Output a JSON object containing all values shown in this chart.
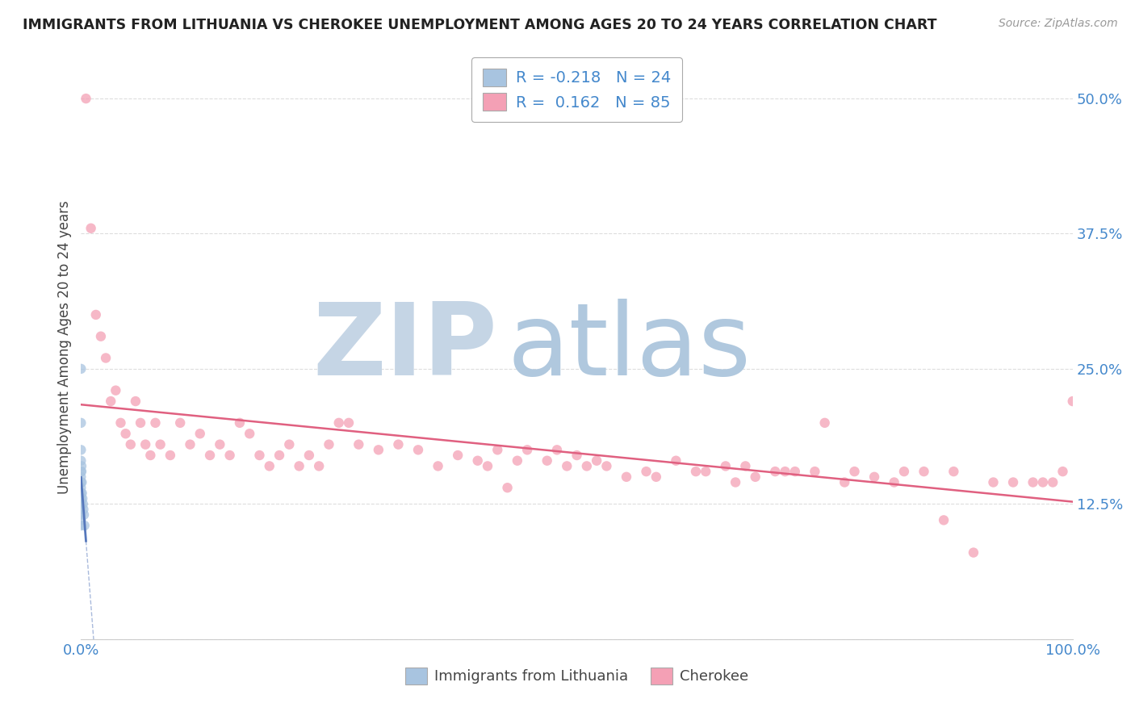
{
  "title": "IMMIGRANTS FROM LITHUANIA VS CHEROKEE UNEMPLOYMENT AMONG AGES 20 TO 24 YEARS CORRELATION CHART",
  "source": "Source: ZipAtlas.com",
  "ylabel": "Unemployment Among Ages 20 to 24 years",
  "legend_label_1": "Immigrants from Lithuania",
  "legend_label_2": "Cherokee",
  "R1": -0.218,
  "N1": 24,
  "R2": 0.162,
  "N2": 85,
  "color1": "#a8c4e0",
  "color2": "#f4a0b5",
  "line_color1": "#5577bb",
  "line_color2": "#e06080",
  "watermark_zip": "ZIP",
  "watermark_atlas": "atlas",
  "watermark_color_zip": "#c8d8e8",
  "watermark_color_atlas": "#b8cce0",
  "xlim": [
    0.0,
    100.0
  ],
  "ylim": [
    0.0,
    0.54
  ],
  "ytick_vals": [
    0.0,
    0.125,
    0.25,
    0.375,
    0.5
  ],
  "ytick_labels": [
    "",
    "12.5%",
    "25.0%",
    "37.5%",
    "50.0%"
  ],
  "xtick_vals": [
    0,
    100
  ],
  "xtick_labels": [
    "0.0%",
    "100.0%"
  ],
  "background": "#ffffff",
  "grid_color": "#dddddd",
  "dot_size": 80,
  "dot_alpha": 0.75,
  "blue_x": [
    0.0,
    0.0,
    0.0,
    0.0,
    0.0,
    0.0,
    0.0,
    0.0,
    0.0,
    0.0,
    0.0,
    0.0,
    0.0,
    0.0,
    0.0,
    0.05,
    0.05,
    0.08,
    0.1,
    0.15,
    0.2,
    0.25,
    0.3,
    0.35
  ],
  "blue_y": [
    0.25,
    0.2,
    0.175,
    0.165,
    0.155,
    0.15,
    0.145,
    0.14,
    0.135,
    0.13,
    0.125,
    0.12,
    0.115,
    0.11,
    0.105,
    0.16,
    0.155,
    0.145,
    0.135,
    0.13,
    0.125,
    0.12,
    0.115,
    0.105
  ],
  "pink_x": [
    0.5,
    1.0,
    1.5,
    2.0,
    2.5,
    3.0,
    3.5,
    4.0,
    4.5,
    5.0,
    5.5,
    6.0,
    6.5,
    7.0,
    7.5,
    8.0,
    9.0,
    10.0,
    11.0,
    12.0,
    13.0,
    14.0,
    15.0,
    16.0,
    17.0,
    18.0,
    19.0,
    20.0,
    21.0,
    22.0,
    23.0,
    24.0,
    25.0,
    26.0,
    27.0,
    28.0,
    30.0,
    32.0,
    34.0,
    36.0,
    38.0,
    40.0,
    41.0,
    42.0,
    44.0,
    45.0,
    47.0,
    48.0,
    49.0,
    50.0,
    51.0,
    52.0,
    53.0,
    55.0,
    57.0,
    58.0,
    60.0,
    62.0,
    63.0,
    65.0,
    66.0,
    67.0,
    68.0,
    70.0,
    71.0,
    72.0,
    74.0,
    75.0,
    77.0,
    78.0,
    80.0,
    82.0,
    83.0,
    85.0,
    87.0,
    88.0,
    90.0,
    92.0,
    94.0,
    96.0,
    97.0,
    98.0,
    99.0,
    100.0,
    43.0
  ],
  "pink_y": [
    0.5,
    0.38,
    0.3,
    0.28,
    0.26,
    0.22,
    0.23,
    0.2,
    0.19,
    0.18,
    0.22,
    0.2,
    0.18,
    0.17,
    0.2,
    0.18,
    0.17,
    0.2,
    0.18,
    0.19,
    0.17,
    0.18,
    0.17,
    0.2,
    0.19,
    0.17,
    0.16,
    0.17,
    0.18,
    0.16,
    0.17,
    0.16,
    0.18,
    0.2,
    0.2,
    0.18,
    0.175,
    0.18,
    0.175,
    0.16,
    0.17,
    0.165,
    0.16,
    0.175,
    0.165,
    0.175,
    0.165,
    0.175,
    0.16,
    0.17,
    0.16,
    0.165,
    0.16,
    0.15,
    0.155,
    0.15,
    0.165,
    0.155,
    0.155,
    0.16,
    0.145,
    0.16,
    0.15,
    0.155,
    0.155,
    0.155,
    0.155,
    0.2,
    0.145,
    0.155,
    0.15,
    0.145,
    0.155,
    0.155,
    0.11,
    0.155,
    0.08,
    0.145,
    0.145,
    0.145,
    0.145,
    0.145,
    0.155,
    0.22,
    0.14
  ]
}
